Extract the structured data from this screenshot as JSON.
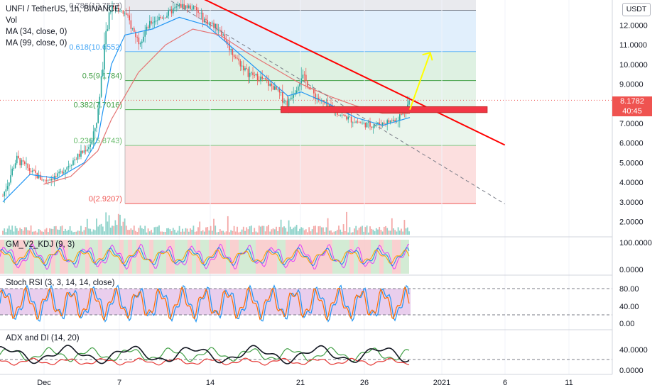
{
  "legend": {
    "symbol": "UNFI / TetherUS, 1h, BINANCE",
    "vol": "Vol",
    "ma1": "MA (34, close, 0)",
    "ma2": "MA (99, close, 0)"
  },
  "currency_button": "USDT",
  "last_price": "8.1782",
  "countdown": "40:45",
  "indicators": {
    "kdj": "GM_V2_KDJ (9, 3)",
    "stoch": "Stoch RSI (3, 3, 14, 14, close)",
    "adx": "ADX and DI (14, 20)"
  },
  "colors": {
    "candle_up": "#26a69a",
    "candle_down": "#ef5350",
    "ma34": "#2196f3",
    "ma99": "#e57373",
    "trendline": "#ff0000",
    "arrow": "#ffff00",
    "zone": "#f23645"
  },
  "chart_data": {
    "type": "candlestick",
    "symbol": "UNFI / TetherUS",
    "interval": "1h",
    "exchange": "BINANCE",
    "x_tick_labels": [
      "Dec",
      "7",
      "14",
      "21",
      "26",
      "2021",
      "6",
      "11"
    ],
    "price_axis": {
      "ylim": [
        1.2,
        13.4
      ],
      "ticks": [
        "12.0000",
        "11.0000",
        "10.0000",
        "9.0000",
        "8.0000",
        "7.0000",
        "6.0000",
        "5.0000",
        "4.0000",
        "3.0000",
        "2.0000"
      ]
    },
    "fibonacci": [
      {
        "level": "0.786",
        "label": "0.786(12.7577)",
        "price": 12.7577
      },
      {
        "level": "0.618",
        "label": "0.618(10.6552)",
        "price": 10.6552
      },
      {
        "level": "0.5",
        "label": "0.5(9.1784)",
        "price": 9.1784
      },
      {
        "level": "0.382",
        "label": "0.382(7.7016)",
        "price": 7.7016
      },
      {
        "level": "0.236",
        "label": "0.236(5.8743)",
        "price": 5.8743
      },
      {
        "level": "0",
        "label": "0(2.9207)",
        "price": 2.9207
      }
    ],
    "price_path": [
      {
        "day": 0,
        "price": 3.3
      },
      {
        "day": 1,
        "price": 5.2
      },
      {
        "day": 2,
        "price": 4.6
      },
      {
        "day": 3,
        "price": 4.1
      },
      {
        "day": 4,
        "price": 4.3
      },
      {
        "day": 5,
        "price": 5.0
      },
      {
        "day": 6,
        "price": 5.6
      },
      {
        "day": 6.6,
        "price": 6.1
      },
      {
        "day": 7,
        "price": 7.5
      },
      {
        "day": 7.5,
        "price": 11.0
      },
      {
        "day": 8,
        "price": 13.0
      },
      {
        "day": 9,
        "price": 12.6
      },
      {
        "day": 10,
        "price": 11.2
      },
      {
        "day": 11,
        "price": 12.2
      },
      {
        "day": 12,
        "price": 12.5
      },
      {
        "day": 13,
        "price": 13.0
      },
      {
        "day": 14,
        "price": 12.9
      },
      {
        "day": 15,
        "price": 12.2
      },
      {
        "day": 16,
        "price": 11.8
      },
      {
        "day": 17,
        "price": 10.5
      },
      {
        "day": 18,
        "price": 9.6
      },
      {
        "day": 19,
        "price": 9.3
      },
      {
        "day": 20,
        "price": 8.8
      },
      {
        "day": 21,
        "price": 8.0
      },
      {
        "day": 22,
        "price": 9.5
      },
      {
        "day": 23,
        "price": 8.4
      },
      {
        "day": 24,
        "price": 7.8
      },
      {
        "day": 25,
        "price": 7.4
      },
      {
        "day": 26,
        "price": 7.1
      },
      {
        "day": 27,
        "price": 6.9
      },
      {
        "day": 28,
        "price": 7.0
      },
      {
        "day": 29,
        "price": 7.2
      },
      {
        "day": 29.6,
        "price": 7.6
      },
      {
        "day": 30,
        "price": 8.18
      }
    ],
    "ma34_path": [
      {
        "day": 0,
        "price": 3.0
      },
      {
        "day": 2,
        "price": 4.4
      },
      {
        "day": 4,
        "price": 4.2
      },
      {
        "day": 6,
        "price": 5.0
      },
      {
        "day": 7,
        "price": 6.2
      },
      {
        "day": 8,
        "price": 10.0
      },
      {
        "day": 9,
        "price": 11.5
      },
      {
        "day": 11,
        "price": 11.8
      },
      {
        "day": 13,
        "price": 12.4
      },
      {
        "day": 15,
        "price": 12.0
      },
      {
        "day": 17,
        "price": 10.8
      },
      {
        "day": 19,
        "price": 9.6
      },
      {
        "day": 21,
        "price": 8.4
      },
      {
        "day": 22,
        "price": 8.6
      },
      {
        "day": 24,
        "price": 8.0
      },
      {
        "day": 26,
        "price": 7.3
      },
      {
        "day": 28,
        "price": 6.9
      },
      {
        "day": 30,
        "price": 7.3
      }
    ],
    "ma99_path": [
      {
        "day": 3,
        "price": 3.9
      },
      {
        "day": 5,
        "price": 4.3
      },
      {
        "day": 7,
        "price": 5.6
      },
      {
        "day": 8,
        "price": 7.2
      },
      {
        "day": 10,
        "price": 9.6
      },
      {
        "day": 12,
        "price": 11.0
      },
      {
        "day": 14,
        "price": 11.8
      },
      {
        "day": 16,
        "price": 11.5
      },
      {
        "day": 18,
        "price": 10.6
      },
      {
        "day": 20,
        "price": 9.8
      },
      {
        "day": 22,
        "price": 9.0
      },
      {
        "day": 24,
        "price": 8.4
      },
      {
        "day": 26,
        "price": 7.9
      },
      {
        "day": 28,
        "price": 7.5
      },
      {
        "day": 30,
        "price": 7.5
      }
    ],
    "trendline": [
      {
        "day": 14.6,
        "price": 13.4
      },
      {
        "day": 37,
        "price": 5.9
      }
    ],
    "dashed_trendline": [
      {
        "day": 12,
        "price": 13.4
      },
      {
        "day": 37,
        "price": 2.9
      }
    ],
    "projection_arrow": [
      {
        "day": 30,
        "price": 7.7
      },
      {
        "day": 31.5,
        "price": 10.6
      }
    ],
    "resistance_zone": {
      "day_from": 20.5,
      "day_to": 35.7,
      "price_low": 7.55,
      "price_high": 7.85
    },
    "volume_panel": {
      "type": "bar"
    },
    "kdj_panel": {
      "ticks": [
        "100.0000",
        "0.0000"
      ]
    },
    "stoch_rsi_panel": {
      "ticks": [
        "80.00",
        "40.00",
        "0.00"
      ]
    },
    "adx_panel": {
      "ticks": [
        "40.0000",
        "0.0000"
      ]
    }
  }
}
